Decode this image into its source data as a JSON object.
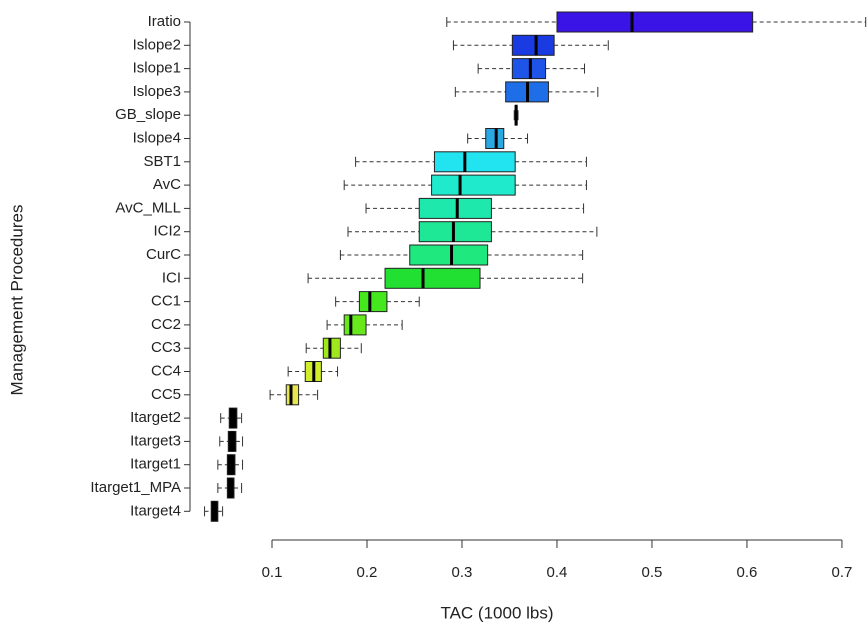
{
  "chart_data": {
    "type": "boxplot",
    "orientation": "horizontal",
    "x_label": "TAC (1000 lbs)",
    "y_label": "Management Procedures",
    "xlim": [
      0.013,
      0.727
    ],
    "xticks": [
      0.1,
      0.2,
      0.3,
      0.4,
      0.5,
      0.6,
      0.7
    ],
    "categories": [
      "Iratio",
      "Islope2",
      "Islope1",
      "Islope3",
      "GB_slope",
      "Islope4",
      "SBT1",
      "AvC",
      "AvC_MLL",
      "ICI2",
      "CurC",
      "ICI",
      "CC1",
      "CC2",
      "CC3",
      "CC4",
      "CC5",
      "Itarget2",
      "Itarget3",
      "Itarget1",
      "Itarget1_MPA",
      "Itarget4"
    ],
    "boxes": [
      {
        "min": 0.284,
        "q1": 0.4,
        "median": 0.479,
        "q3": 0.606,
        "max": 0.725,
        "color": "#3a14e6"
      },
      {
        "min": 0.291,
        "q1": 0.353,
        "median": 0.378,
        "q3": 0.397,
        "max": 0.454,
        "color": "#1a3ae2"
      },
      {
        "min": 0.317,
        "q1": 0.353,
        "median": 0.372,
        "q3": 0.388,
        "max": 0.429,
        "color": "#1f54e8"
      },
      {
        "min": 0.293,
        "q1": 0.346,
        "median": 0.369,
        "q3": 0.391,
        "max": 0.443,
        "color": "#1e6ee8"
      },
      {
        "min": 0.355,
        "q1": 0.356,
        "median": 0.357,
        "q3": 0.358,
        "max": 0.359,
        "color": "#000000"
      },
      {
        "min": 0.306,
        "q1": 0.325,
        "median": 0.336,
        "q3": 0.344,
        "max": 0.369,
        "color": "#2aa8e2"
      },
      {
        "min": 0.188,
        "q1": 0.271,
        "median": 0.303,
        "q3": 0.356,
        "max": 0.431,
        "color": "#22e4f0"
      },
      {
        "min": 0.176,
        "q1": 0.268,
        "median": 0.298,
        "q3": 0.356,
        "max": 0.431,
        "color": "#20eacc"
      },
      {
        "min": 0.199,
        "q1": 0.255,
        "median": 0.295,
        "q3": 0.331,
        "max": 0.428,
        "color": "#1ee8ac"
      },
      {
        "min": 0.18,
        "q1": 0.255,
        "median": 0.291,
        "q3": 0.331,
        "max": 0.442,
        "color": "#1ee896"
      },
      {
        "min": 0.172,
        "q1": 0.245,
        "median": 0.289,
        "q3": 0.327,
        "max": 0.427,
        "color": "#1ee87e"
      },
      {
        "min": 0.138,
        "q1": 0.219,
        "median": 0.259,
        "q3": 0.319,
        "max": 0.427,
        "color": "#22e032"
      },
      {
        "min": 0.167,
        "q1": 0.192,
        "median": 0.203,
        "q3": 0.221,
        "max": 0.255,
        "color": "#44e81c"
      },
      {
        "min": 0.158,
        "q1": 0.176,
        "median": 0.183,
        "q3": 0.199,
        "max": 0.237,
        "color": "#66e81c"
      },
      {
        "min": 0.136,
        "q1": 0.154,
        "median": 0.161,
        "q3": 0.172,
        "max": 0.194,
        "color": "#9ee81c"
      },
      {
        "min": 0.117,
        "q1": 0.135,
        "median": 0.144,
        "q3": 0.152,
        "max": 0.169,
        "color": "#d0ec2a"
      },
      {
        "min": 0.098,
        "q1": 0.115,
        "median": 0.12,
        "q3": 0.128,
        "max": 0.148,
        "color": "#e8e650"
      },
      {
        "min": 0.046,
        "q1": 0.055,
        "median": 0.058,
        "q3": 0.063,
        "max": 0.068,
        "color": "#000000"
      },
      {
        "min": 0.045,
        "q1": 0.054,
        "median": 0.058,
        "q3": 0.062,
        "max": 0.069,
        "color": "#000000"
      },
      {
        "min": 0.043,
        "q1": 0.053,
        "median": 0.057,
        "q3": 0.061,
        "max": 0.069,
        "color": "#000000"
      },
      {
        "min": 0.043,
        "q1": 0.053,
        "median": 0.056,
        "q3": 0.06,
        "max": 0.068,
        "color": "#000000"
      },
      {
        "min": 0.029,
        "q1": 0.036,
        "median": 0.039,
        "q3": 0.043,
        "max": 0.048,
        "color": "#000000"
      }
    ]
  }
}
